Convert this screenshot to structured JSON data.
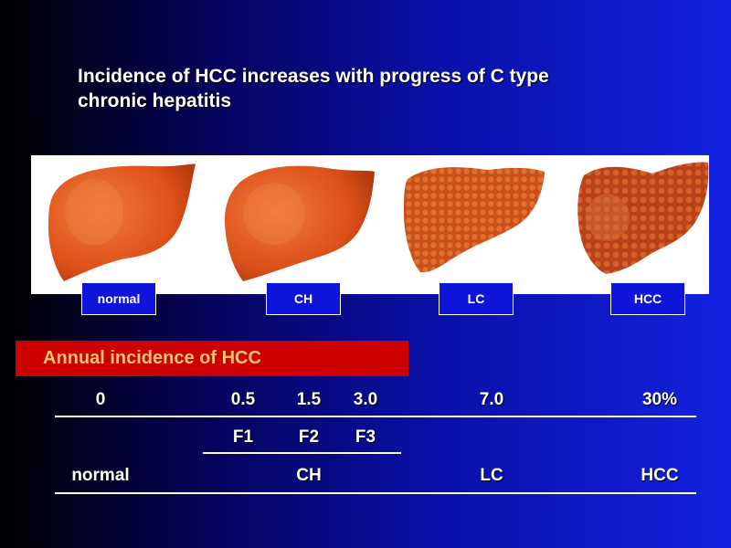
{
  "slide": {
    "title_lines": [
      "Incidence of HCC increases with progress of C type",
      "chronic hepatitis"
    ]
  },
  "stages": [
    {
      "label": "normal"
    },
    {
      "label": "CH"
    },
    {
      "label": "LC"
    },
    {
      "label": "HCC"
    }
  ],
  "table": {
    "banner": "Annual incidence of HCC",
    "rates": [
      "0",
      "0.5",
      "1.5",
      "3.0",
      "7.0",
      "30%"
    ],
    "fibrosis": [
      "F1",
      "F2",
      "F3"
    ],
    "stages": [
      "normal",
      "CH",
      "LC",
      "HCC"
    ]
  },
  "colors": {
    "banner_bg": "#cc0000",
    "banner_text": "#f6c66a",
    "label_bg": "#0e14d8",
    "liver_normal": "#e8501c",
    "liver_diseased": "#c84414"
  }
}
